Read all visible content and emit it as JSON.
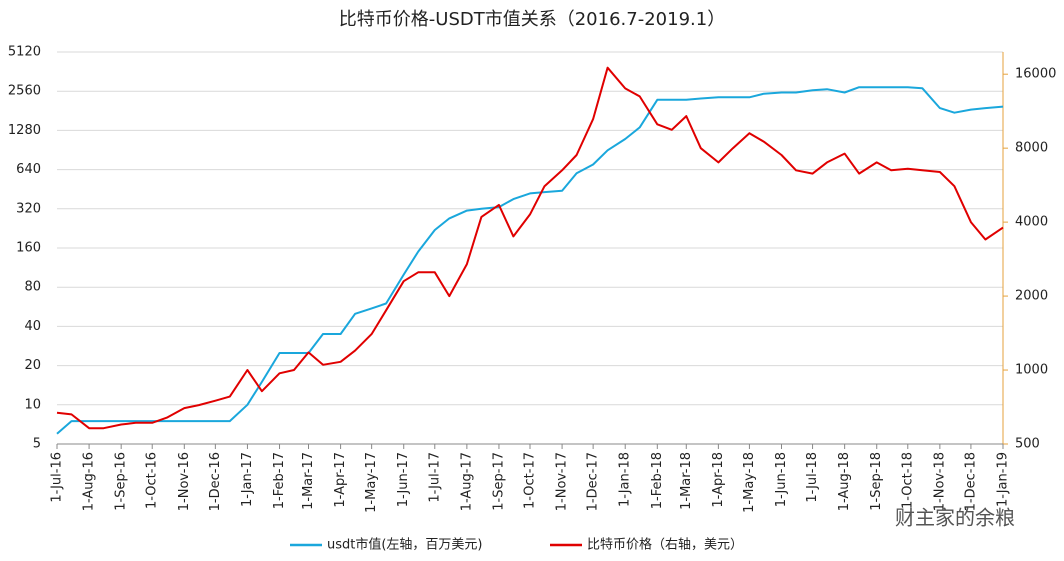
{
  "chart_data": {
    "type": "line",
    "title": "比特币价格-USDT市值关系（2016.7-2019.1）",
    "x": [
      "2016-07-01",
      "2016-07-15",
      "2016-08-01",
      "2016-08-15",
      "2016-09-01",
      "2016-09-15",
      "2016-10-01",
      "2016-10-15",
      "2016-11-01",
      "2016-11-15",
      "2016-12-01",
      "2016-12-15",
      "2017-01-01",
      "2017-01-15",
      "2017-02-01",
      "2017-02-15",
      "2017-03-01",
      "2017-03-15",
      "2017-04-01",
      "2017-04-15",
      "2017-05-01",
      "2017-05-15",
      "2017-06-01",
      "2017-06-15",
      "2017-07-01",
      "2017-07-15",
      "2017-08-01",
      "2017-08-15",
      "2017-09-01",
      "2017-09-15",
      "2017-10-01",
      "2017-10-15",
      "2017-11-01",
      "2017-11-15",
      "2017-12-01",
      "2017-12-15",
      "2018-01-01",
      "2018-01-15",
      "2018-02-01",
      "2018-02-15",
      "2018-03-01",
      "2018-03-15",
      "2018-04-01",
      "2018-04-15",
      "2018-05-01",
      "2018-05-15",
      "2018-06-01",
      "2018-06-15",
      "2018-07-01",
      "2018-07-15",
      "2018-08-01",
      "2018-08-15",
      "2018-09-01",
      "2018-09-15",
      "2018-10-01",
      "2018-10-15",
      "2018-11-01",
      "2018-11-15",
      "2018-12-01",
      "2018-12-15",
      "2019-01-01"
    ],
    "series": [
      {
        "name": "usdt市值(左轴，百万美元)",
        "color": "#1aa7dc",
        "axis": "y",
        "values": [
          6,
          7.5,
          7.5,
          7.5,
          7.5,
          7.5,
          7.5,
          7.5,
          7.5,
          7.5,
          7.5,
          7.5,
          10,
          15,
          25,
          25,
          25,
          35,
          35,
          50,
          55,
          60,
          100,
          150,
          220,
          270,
          310,
          320,
          330,
          380,
          420,
          430,
          440,
          600,
          700,
          900,
          1100,
          1350,
          2200,
          2200,
          2200,
          2250,
          2300,
          2300,
          2300,
          2450,
          2500,
          2500,
          2600,
          2650,
          2500,
          2750,
          2750,
          2750,
          2750,
          2700,
          1900,
          1750,
          1850,
          1900,
          1950
        ]
      },
      {
        "name": "比特币价格（右轴，美元）",
        "color": "#e00000",
        "axis": "y2",
        "values": [
          670,
          660,
          580,
          580,
          600,
          610,
          610,
          640,
          700,
          720,
          750,
          780,
          1000,
          820,
          970,
          1000,
          1180,
          1050,
          1080,
          1200,
          1400,
          1750,
          2300,
          2500,
          2500,
          2000,
          2700,
          4200,
          4700,
          3500,
          4300,
          5600,
          6500,
          7500,
          10500,
          17000,
          14000,
          13000,
          10000,
          9500,
          10800,
          8000,
          7000,
          8000,
          9200,
          8500,
          7500,
          6500,
          6300,
          7000,
          7600,
          6300,
          7000,
          6500,
          6600,
          6500,
          6400,
          5600,
          4000,
          3400,
          3800
        ]
      }
    ],
    "xlim": [
      "2016-07-01",
      "2019-01-01"
    ],
    "xticks": [
      {
        "value": "2016-07-01",
        "label": "1-Jul-16"
      },
      {
        "value": "2016-08-01",
        "label": "1-Aug-16"
      },
      {
        "value": "2016-09-01",
        "label": "1-Sep-16"
      },
      {
        "value": "2016-10-01",
        "label": "1-Oct-16"
      },
      {
        "value": "2016-11-01",
        "label": "1-Nov-16"
      },
      {
        "value": "2016-12-01",
        "label": "1-Dec-16"
      },
      {
        "value": "2017-01-01",
        "label": "1-Jan-17"
      },
      {
        "value": "2017-02-01",
        "label": "1-Feb-17"
      },
      {
        "value": "2017-03-01",
        "label": "1-Mar-17"
      },
      {
        "value": "2017-04-01",
        "label": "1-Apr-17"
      },
      {
        "value": "2017-05-01",
        "label": "1-May-17"
      },
      {
        "value": "2017-06-01",
        "label": "1-Jun-17"
      },
      {
        "value": "2017-07-01",
        "label": "1-Jul-17"
      },
      {
        "value": "2017-08-01",
        "label": "1-Aug-17"
      },
      {
        "value": "2017-09-01",
        "label": "1-Sep-17"
      },
      {
        "value": "2017-10-01",
        "label": "1-Oct-17"
      },
      {
        "value": "2017-11-01",
        "label": "1-Nov-17"
      },
      {
        "value": "2017-12-01",
        "label": "1-Dec-17"
      },
      {
        "value": "2018-01-01",
        "label": "1-Jan-18"
      },
      {
        "value": "2018-02-01",
        "label": "1-Feb-18"
      },
      {
        "value": "2018-03-01",
        "label": "1-Mar-18"
      },
      {
        "value": "2018-04-01",
        "label": "1-Apr-18"
      },
      {
        "value": "2018-05-01",
        "label": "1-May-18"
      },
      {
        "value": "2018-06-01",
        "label": "1-Jun-18"
      },
      {
        "value": "2018-07-01",
        "label": "1-Jul-18"
      },
      {
        "value": "2018-08-01",
        "label": "1-Aug-18"
      },
      {
        "value": "2018-09-01",
        "label": "1-Sep-18"
      },
      {
        "value": "2018-10-01",
        "label": "1-Oct-18"
      },
      {
        "value": "2018-11-01",
        "label": "1-Nov-18"
      },
      {
        "value": "2018-12-01",
        "label": "1-Dec-18"
      },
      {
        "value": "2019-01-01",
        "label": "1-Jan-19"
      }
    ],
    "yscale": "log",
    "ylim": [
      5,
      5120
    ],
    "yticks": [
      5,
      10,
      20,
      40,
      80,
      160,
      320,
      640,
      1280,
      2560,
      5120
    ],
    "y2scale": "log",
    "y2lim": [
      500,
      19700
    ],
    "y2ticks": [
      500,
      1000,
      2000,
      4000,
      8000,
      16000
    ],
    "y2axis_color": "#e6a23c",
    "grid": true,
    "legend": "bottom",
    "watermark": "财主家的余粮"
  }
}
